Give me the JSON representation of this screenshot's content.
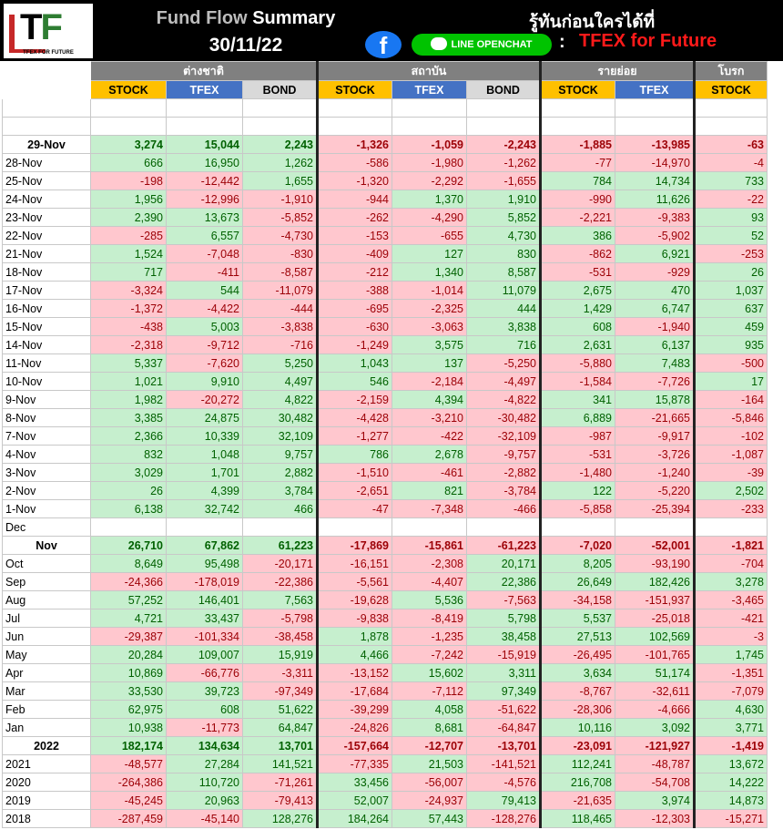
{
  "header": {
    "title_prefix": "Fund Flow",
    "title_suffix": "Summary",
    "date": "30/11/22",
    "slogan": "รู้ทันก่อนใครได้ที่",
    "facebook_glyph": "f",
    "line_label": "LINE OPENCHAT",
    "colon": ":",
    "tfex_future": "TFEX for Future",
    "logo_text": "TFEX FOR FUTURE",
    "logo_t": "T",
    "logo_f": "F"
  },
  "groups": {
    "foreign": "ต่างชาติ",
    "institution": "สถาบัน",
    "retail": "รายย่อย",
    "broker": "โบรก"
  },
  "subheaders": {
    "stock": "STOCK",
    "tfex": "TFEX",
    "bond": "BOND"
  },
  "colors": {
    "positive_bg": "#c6efce",
    "positive_text": "#006100",
    "negative_bg": "#ffc7ce",
    "negative_text": "#9c0006",
    "group_header": "#808080",
    "stock_header": "#ffc000",
    "tfex_header": "#4472c4",
    "bond_header": "#d9d9d9"
  },
  "section1": [
    {
      "label": "29-Nov",
      "bold": true,
      "v": [
        "3,274",
        "15,044",
        "2,243",
        "-1,326",
        "-1,059",
        "-2,243",
        "-1,885",
        "-13,985",
        "-63"
      ]
    },
    {
      "label": "28-Nov",
      "v": [
        "666",
        "16,950",
        "1,262",
        "-586",
        "-1,980",
        "-1,262",
        "-77",
        "-14,970",
        "-4"
      ]
    },
    {
      "label": "25-Nov",
      "v": [
        "-198",
        "-12,442",
        "1,655",
        "-1,320",
        "-2,292",
        "-1,655",
        "784",
        "14,734",
        "733"
      ]
    },
    {
      "label": "24-Nov",
      "v": [
        "1,956",
        "-12,996",
        "-1,910",
        "-944",
        "1,370",
        "1,910",
        "-990",
        "11,626",
        "-22"
      ]
    },
    {
      "label": "23-Nov",
      "v": [
        "2,390",
        "13,673",
        "-5,852",
        "-262",
        "-4,290",
        "5,852",
        "-2,221",
        "-9,383",
        "93"
      ]
    },
    {
      "label": "22-Nov",
      "v": [
        "-285",
        "6,557",
        "-4,730",
        "-153",
        "-655",
        "4,730",
        "386",
        "-5,902",
        "52"
      ]
    },
    {
      "label": "21-Nov",
      "v": [
        "1,524",
        "-7,048",
        "-830",
        "-409",
        "127",
        "830",
        "-862",
        "6,921",
        "-253"
      ]
    },
    {
      "label": "18-Nov",
      "v": [
        "717",
        "-411",
        "-8,587",
        "-212",
        "1,340",
        "8,587",
        "-531",
        "-929",
        "26"
      ]
    },
    {
      "label": "17-Nov",
      "v": [
        "-3,324",
        "544",
        "-11,079",
        "-388",
        "-1,014",
        "11,079",
        "2,675",
        "470",
        "1,037"
      ]
    },
    {
      "label": "16-Nov",
      "v": [
        "-1,372",
        "-4,422",
        "-444",
        "-695",
        "-2,325",
        "444",
        "1,429",
        "6,747",
        "637"
      ]
    },
    {
      "label": "15-Nov",
      "v": [
        "-438",
        "5,003",
        "-3,838",
        "-630",
        "-3,063",
        "3,838",
        "608",
        "-1,940",
        "459"
      ]
    },
    {
      "label": "14-Nov",
      "v": [
        "-2,318",
        "-9,712",
        "-716",
        "-1,249",
        "3,575",
        "716",
        "2,631",
        "6,137",
        "935"
      ]
    },
    {
      "label": "11-Nov",
      "v": [
        "5,337",
        "-7,620",
        "5,250",
        "1,043",
        "137",
        "-5,250",
        "-5,880",
        "7,483",
        "-500"
      ]
    },
    {
      "label": "10-Nov",
      "v": [
        "1,021",
        "9,910",
        "4,497",
        "546",
        "-2,184",
        "-4,497",
        "-1,584",
        "-7,726",
        "17"
      ]
    },
    {
      "label": "9-Nov",
      "v": [
        "1,982",
        "-20,272",
        "4,822",
        "-2,159",
        "4,394",
        "-4,822",
        "341",
        "15,878",
        "-164"
      ]
    },
    {
      "label": "8-Nov",
      "v": [
        "3,385",
        "24,875",
        "30,482",
        "-4,428",
        "-3,210",
        "-30,482",
        "6,889",
        "-21,665",
        "-5,846"
      ]
    },
    {
      "label": "7-Nov",
      "v": [
        "2,366",
        "10,339",
        "32,109",
        "-1,277",
        "-422",
        "-32,109",
        "-987",
        "-9,917",
        "-102"
      ]
    },
    {
      "label": "4-Nov",
      "v": [
        "832",
        "1,048",
        "9,757",
        "786",
        "2,678",
        "-9,757",
        "-531",
        "-3,726",
        "-1,087"
      ]
    },
    {
      "label": "3-Nov",
      "v": [
        "3,029",
        "1,701",
        "2,882",
        "-1,510",
        "-461",
        "-2,882",
        "-1,480",
        "-1,240",
        "-39"
      ]
    },
    {
      "label": "2-Nov",
      "v": [
        "26",
        "4,399",
        "3,784",
        "-2,651",
        "821",
        "-3,784",
        "122",
        "-5,220",
        "2,502"
      ]
    },
    {
      "label": "1-Nov",
      "v": [
        "6,138",
        "32,742",
        "466",
        "-47",
        "-7,348",
        "-466",
        "-5,858",
        "-25,394",
        "-233"
      ]
    }
  ],
  "section2_blank_label": "Dec",
  "section2": [
    {
      "label": "Nov",
      "bold": true,
      "v": [
        "26,710",
        "67,862",
        "61,223",
        "-17,869",
        "-15,861",
        "-61,223",
        "-7,020",
        "-52,001",
        "-1,821"
      ]
    },
    {
      "label": "Oct",
      "v": [
        "8,649",
        "95,498",
        "-20,171",
        "-16,151",
        "-2,308",
        "20,171",
        "8,205",
        "-93,190",
        "-704"
      ]
    },
    {
      "label": "Sep",
      "v": [
        "-24,366",
        "-178,019",
        "-22,386",
        "-5,561",
        "-4,407",
        "22,386",
        "26,649",
        "182,426",
        "3,278"
      ]
    },
    {
      "label": "Aug",
      "v": [
        "57,252",
        "146,401",
        "7,563",
        "-19,628",
        "5,536",
        "-7,563",
        "-34,158",
        "-151,937",
        "-3,465"
      ]
    },
    {
      "label": "Jul",
      "v": [
        "4,721",
        "33,437",
        "-5,798",
        "-9,838",
        "-8,419",
        "5,798",
        "5,537",
        "-25,018",
        "-421"
      ]
    },
    {
      "label": "Jun",
      "v": [
        "-29,387",
        "-101,334",
        "-38,458",
        "1,878",
        "-1,235",
        "38,458",
        "27,513",
        "102,569",
        "-3"
      ]
    },
    {
      "label": "May",
      "v": [
        "20,284",
        "109,007",
        "15,919",
        "4,466",
        "-7,242",
        "-15,919",
        "-26,495",
        "-101,765",
        "1,745"
      ]
    },
    {
      "label": "Apr",
      "v": [
        "10,869",
        "-66,776",
        "-3,311",
        "-13,152",
        "15,602",
        "3,311",
        "3,634",
        "51,174",
        "-1,351"
      ]
    },
    {
      "label": "Mar",
      "v": [
        "33,530",
        "39,723",
        "-97,349",
        "-17,684",
        "-7,112",
        "97,349",
        "-8,767",
        "-32,611",
        "-7,079"
      ]
    },
    {
      "label": "Feb",
      "v": [
        "62,975",
        "608",
        "51,622",
        "-39,299",
        "4,058",
        "-51,622",
        "-28,306",
        "-4,666",
        "4,630"
      ]
    },
    {
      "label": "Jan",
      "v": [
        "10,938",
        "-11,773",
        "64,847",
        "-24,826",
        "8,681",
        "-64,847",
        "10,116",
        "3,092",
        "3,771"
      ]
    }
  ],
  "section3": [
    {
      "label": "2022",
      "bold": true,
      "v": [
        "182,174",
        "134,634",
        "13,701",
        "-157,664",
        "-12,707",
        "-13,701",
        "-23,091",
        "-121,927",
        "-1,419"
      ]
    },
    {
      "label": "2021",
      "v": [
        "-48,577",
        "27,284",
        "141,521",
        "-77,335",
        "21,503",
        "-141,521",
        "112,241",
        "-48,787",
        "13,672"
      ]
    },
    {
      "label": "2020",
      "v": [
        "-264,386",
        "110,720",
        "-71,261",
        "33,456",
        "-56,007",
        "-4,576",
        "216,708",
        "-54,708",
        "14,222"
      ]
    },
    {
      "label": "2019",
      "v": [
        "-45,245",
        "20,963",
        "-79,413",
        "52,007",
        "-24,937",
        "79,413",
        "-21,635",
        "3,974",
        "14,873"
      ]
    },
    {
      "label": "2018",
      "v": [
        "-287,459",
        "-45,140",
        "128,276",
        "184,264",
        "57,443",
        "-128,276",
        "118,465",
        "-12,303",
        "-15,271"
      ]
    }
  ]
}
